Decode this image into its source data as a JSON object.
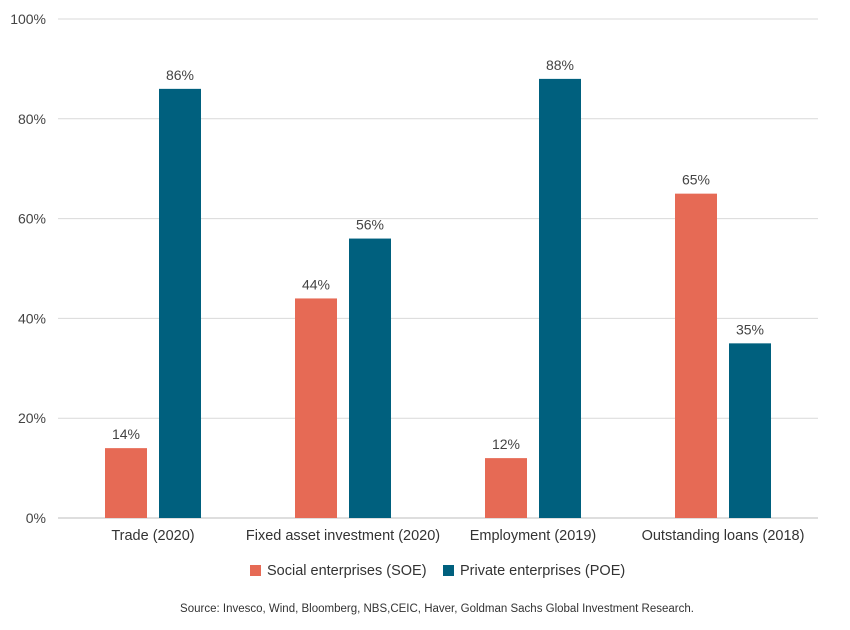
{
  "chart_data": {
    "type": "bar",
    "categories": [
      "Trade (2020)",
      "Fixed asset investment (2020)",
      "Employment (2019)",
      "Outstanding loans (2018)"
    ],
    "series": [
      {
        "name": "Social enterprises (SOE)",
        "values": [
          14,
          44,
          12,
          65
        ],
        "color": "#e66a55"
      },
      {
        "name": "Private enterprises (POE)",
        "values": [
          86,
          56,
          88,
          35
        ],
        "color": "#00607e"
      }
    ],
    "ylim": [
      0,
      100
    ],
    "yticks": [
      0,
      20,
      40,
      60,
      80,
      100
    ],
    "ytick_labels": [
      "0%",
      "20%",
      "40%",
      "60%",
      "80%",
      "100%"
    ],
    "value_suffix": "%",
    "grid": true,
    "legend_position": "bottom-center"
  },
  "source": "Source: Invesco, Wind, Bloomberg, NBS,CEIC, Haver, Goldman Sachs Global Investment Research.",
  "colors": {
    "grid": "#d9d9d9",
    "axis": "#bdbdbd"
  }
}
